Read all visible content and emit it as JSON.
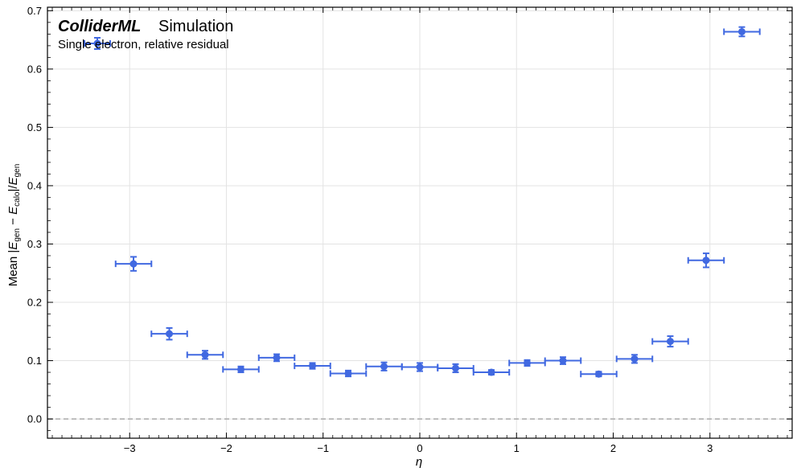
{
  "experiment_label": {
    "bold": "ColliderML",
    "normal": "Simulation"
  },
  "legend": {
    "text": "Single electron, relative residual"
  },
  "chart_data": {
    "type": "scatter",
    "title": "",
    "xlabel": "η",
    "ylabel": "Mean |E_gen − E_calo|/E_gen",
    "ylabel_parts": {
      "pre": "Mean |",
      "E1": "E",
      "sub1": "gen",
      "minus": " − ",
      "E2": "E",
      "sub2": "calo",
      "mid": "|/",
      "E3": "E",
      "sub3": "gen"
    },
    "xlim": [
      -3.85,
      3.85
    ],
    "ylim": [
      -0.033,
      0.706
    ],
    "xticks": [
      -3,
      -2,
      -1,
      0,
      1,
      2,
      3
    ],
    "xtick_labels": [
      "−3",
      "−2",
      "−1",
      "0",
      "1",
      "2",
      "3"
    ],
    "yticks": [
      0.0,
      0.1,
      0.2,
      0.3,
      0.4,
      0.5,
      0.6,
      0.7
    ],
    "ytick_labels": [
      "0.0",
      "0.1",
      "0.2",
      "0.3",
      "0.4",
      "0.5",
      "0.6",
      "0.7"
    ],
    "grid": true,
    "legend_position": "top-left",
    "reference_line": {
      "y": 0.0,
      "style": "dashed",
      "color": "#b0b0b0"
    },
    "series": [
      {
        "color": "#4169e1",
        "x_halfwidth": 0.185,
        "x": [
          -2.96,
          -2.59,
          -2.22,
          -1.85,
          -1.48,
          -1.11,
          -0.74,
          -0.37,
          0.0,
          0.37,
          0.74,
          1.11,
          1.48,
          1.85,
          2.22,
          2.59,
          2.96,
          3.33
        ],
        "y": [
          0.266,
          0.146,
          0.11,
          0.085,
          0.105,
          0.091,
          0.078,
          0.09,
          0.089,
          0.087,
          0.08,
          0.096,
          0.1,
          0.077,
          0.103,
          0.133,
          0.272,
          0.664
        ],
        "yerr": [
          0.012,
          0.01,
          0.007,
          0.005,
          0.006,
          0.005,
          0.005,
          0.007,
          0.007,
          0.007,
          0.004,
          0.005,
          0.006,
          0.004,
          0.007,
          0.009,
          0.012,
          0.008
        ]
      }
    ]
  }
}
